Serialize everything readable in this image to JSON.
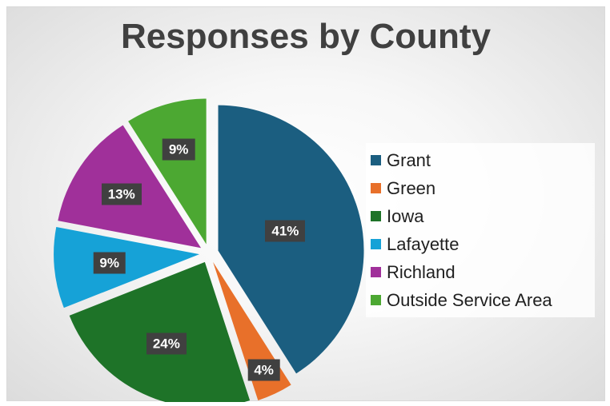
{
  "chart_data": {
    "type": "pie",
    "title": "Responses by County",
    "legend_position": "right",
    "exploded": true,
    "categories": [
      "Grant",
      "Green",
      "Iowa",
      "Lafayette",
      "Richland",
      "Outside Service Area"
    ],
    "values": [
      41,
      4,
      24,
      9,
      13,
      9
    ],
    "labels": [
      "41%",
      "4%",
      "24%",
      "9%",
      "13%",
      "9%"
    ],
    "colors": [
      "#1b5e80",
      "#e8702a",
      "#1e7328",
      "#16a2d7",
      "#a0309a",
      "#4ca832"
    ]
  }
}
